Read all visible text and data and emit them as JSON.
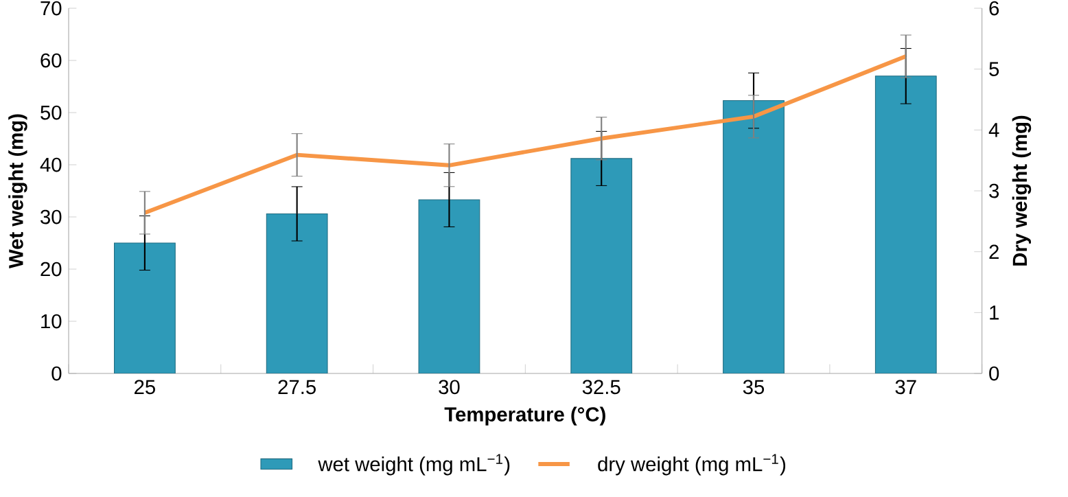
{
  "chart_data": {
    "type": "bar",
    "xlabel": "Temperature (°C)",
    "ylabel": "Wet weight (mg)",
    "y2label": "Dry weight (mg)",
    "categories": [
      "25",
      "27.5",
      "30",
      "32.5",
      "35",
      "37"
    ],
    "series": [
      {
        "name": "wet weight (mg mL$^{−1}$)",
        "color": "#2e9ab8",
        "values": [
          25,
          30.6,
          33.3,
          41.2,
          52.3,
          57.0
        ],
        "errors": [
          5.2,
          5.2,
          5.2,
          5.2,
          5.3,
          5.3
        ]
      },
      {
        "name": "dry weight (mg mL$^{−1}$)",
        "type": "line",
        "axis": "y2",
        "color": "#f79646",
        "values": [
          2.64,
          3.59,
          3.42,
          3.86,
          4.22,
          5.21
        ],
        "errors": [
          0.35,
          0.35,
          0.35,
          0.35,
          0.35,
          0.35
        ]
      }
    ],
    "ylim": [
      0,
      70
    ],
    "yticks": [
      0,
      10,
      20,
      30,
      40,
      50,
      60,
      70
    ],
    "y2lim": [
      0,
      6
    ],
    "y2ticks": [
      0,
      1,
      2,
      3,
      4,
      5,
      6
    ],
    "legend": "bottom",
    "grid": false,
    "marker": "none",
    "line_style": "solid"
  }
}
